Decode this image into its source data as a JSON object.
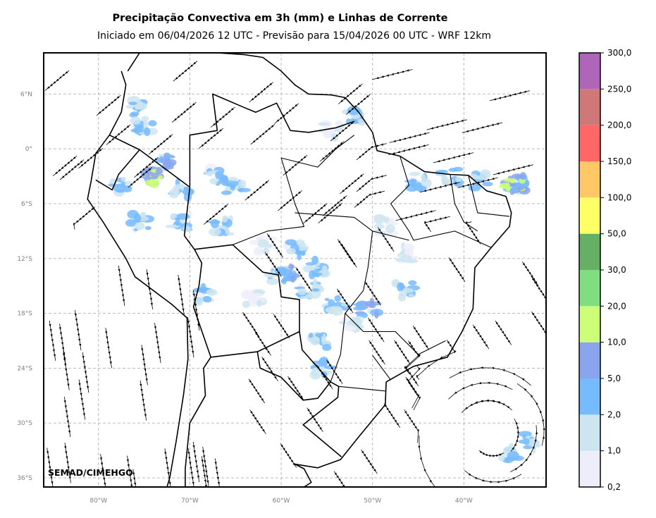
{
  "title": "Precipitação Convectiva em 3h (mm) e Linhas de Corrente",
  "subtitle": "Iniciado em 06/04/2026 12 UTC - Previsão para 15/04/2026 00 UTC - WRF 12km",
  "credit": "SEMAD/CIMEHGO",
  "map": {
    "lon_range": [
      -86,
      -31
    ],
    "lat_range": [
      -37,
      10.5
    ],
    "lat_ticks": [
      {
        "value": 6,
        "label": "6°N"
      },
      {
        "value": 0,
        "label": "0°"
      },
      {
        "value": -6,
        "label": "6°S"
      },
      {
        "value": -12,
        "label": "12°S"
      },
      {
        "value": -18,
        "label": "18°S"
      },
      {
        "value": -24,
        "label": "24°S"
      },
      {
        "value": -30,
        "label": "30°S"
      },
      {
        "value": -36,
        "label": "36°S"
      }
    ],
    "lon_ticks": [
      {
        "value": -80,
        "label": "80°W"
      },
      {
        "value": -70,
        "label": "70°W"
      },
      {
        "value": -60,
        "label": "60°W"
      },
      {
        "value": -50,
        "label": "50°W"
      },
      {
        "value": -40,
        "label": "40°W"
      }
    ],
    "grid": true
  },
  "colorbar": {
    "labels": [
      "0,2",
      "1,0",
      "2,0",
      "5,0",
      "10,0",
      "20,0",
      "30,0",
      "50,0",
      "100,0",
      "150,0",
      "200,0",
      "250,0",
      "300,0"
    ],
    "colors": [
      "#eeeefa",
      "#cce5f0",
      "#77bbff",
      "#8aa4ee",
      "#ccff77",
      "#80dd80",
      "#66b066",
      "#ffff66",
      "#ffc766",
      "#ff6666",
      "#d07878",
      "#b066b8"
    ]
  },
  "precip_cells": [
    {
      "lon": -75.5,
      "lat": 4.5,
      "level": 2
    },
    {
      "lon": -75.0,
      "lat": 2.5,
      "level": 2
    },
    {
      "lon": -72.5,
      "lat": -1.5,
      "level": 3
    },
    {
      "lon": -74.0,
      "lat": -3.0,
      "level": 4
    },
    {
      "lon": -71.0,
      "lat": -4.5,
      "level": 2
    },
    {
      "lon": -77.5,
      "lat": -4.0,
      "level": 2
    },
    {
      "lon": -67.0,
      "lat": -3.0,
      "level": 2
    },
    {
      "lon": -65.0,
      "lat": -4.0,
      "level": 2
    },
    {
      "lon": -75.5,
      "lat": -8.0,
      "level": 2
    },
    {
      "lon": -71.0,
      "lat": -8.0,
      "level": 2
    },
    {
      "lon": -66.5,
      "lat": -8.5,
      "level": 2
    },
    {
      "lon": -62.0,
      "lat": -10.5,
      "level": 1
    },
    {
      "lon": -58.5,
      "lat": -11.0,
      "level": 2
    },
    {
      "lon": -59.0,
      "lat": -13.5,
      "level": 3
    },
    {
      "lon": -56.0,
      "lat": -13.0,
      "level": 2
    },
    {
      "lon": -57.0,
      "lat": -15.5,
      "level": 2
    },
    {
      "lon": -60.5,
      "lat": -14.0,
      "level": 2
    },
    {
      "lon": -68.5,
      "lat": -16.0,
      "level": 2
    },
    {
      "lon": -63.0,
      "lat": -16.5,
      "level": 1
    },
    {
      "lon": -54.0,
      "lat": -17.0,
      "level": 2
    },
    {
      "lon": -50.5,
      "lat": -17.5,
      "level": 3
    },
    {
      "lon": -46.5,
      "lat": -15.5,
      "level": 2
    },
    {
      "lon": -56.0,
      "lat": -21.0,
      "level": 2
    },
    {
      "lon": -55.5,
      "lat": -24.0,
      "level": 2
    },
    {
      "lon": -52.5,
      "lat": -19.5,
      "level": 1
    },
    {
      "lon": -52.0,
      "lat": 3.5,
      "level": 2
    },
    {
      "lon": -54.5,
      "lat": 2.0,
      "level": 1
    },
    {
      "lon": -45.0,
      "lat": -3.5,
      "level": 2
    },
    {
      "lon": -41.5,
      "lat": -3.0,
      "level": 2
    },
    {
      "lon": -38.0,
      "lat": -3.5,
      "level": 2
    },
    {
      "lon": -34.0,
      "lat": -4.0,
      "level": 3
    },
    {
      "lon": -34.5,
      "lat": -3.8,
      "level": 4
    },
    {
      "lon": -35.0,
      "lat": -33.5,
      "level": 2
    },
    {
      "lon": -33.0,
      "lat": -32.0,
      "level": 2
    },
    {
      "lon": -48.5,
      "lat": -8.5,
      "level": 1
    },
    {
      "lon": -46.0,
      "lat": -11.5,
      "level": 1
    }
  ]
}
